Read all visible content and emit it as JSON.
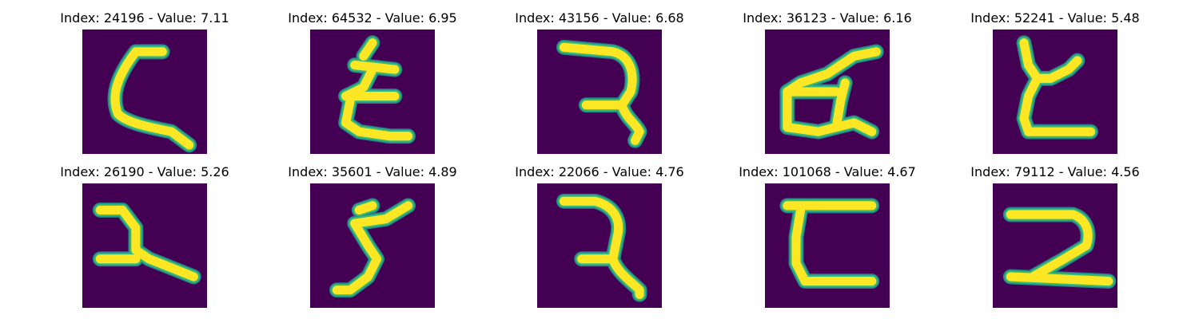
{
  "colors": {
    "background": "#440154",
    "mid": "#21918c",
    "high": "#35b779",
    "peak": "#fde725"
  },
  "panels": [
    {
      "title": "Index: 24196 - Value: 7.11",
      "glyph": "hook-c"
    },
    {
      "title": "Index: 64532 - Value: 6.95",
      "glyph": "zigzag-character"
    },
    {
      "title": "Index: 43156 - Value: 6.68",
      "glyph": "reversed-two"
    },
    {
      "title": "Index: 36123 - Value: 6.16",
      "glyph": "box-character"
    },
    {
      "title": "Index: 52241 - Value: 5.48",
      "glyph": "zigzag-character"
    },
    {
      "title": "Index: 26190 - Value: 5.26",
      "glyph": "cross-stroke"
    },
    {
      "title": "Index: 35601 - Value: 4.89",
      "glyph": "five-like"
    },
    {
      "title": "Index: 22066 - Value: 4.76",
      "glyph": "reversed-two"
    },
    {
      "title": "Index: 101068 - Value: 4.67",
      "glyph": "open-c"
    },
    {
      "title": "Index: 79112 - Value: 4.56",
      "glyph": "two-like"
    }
  ]
}
